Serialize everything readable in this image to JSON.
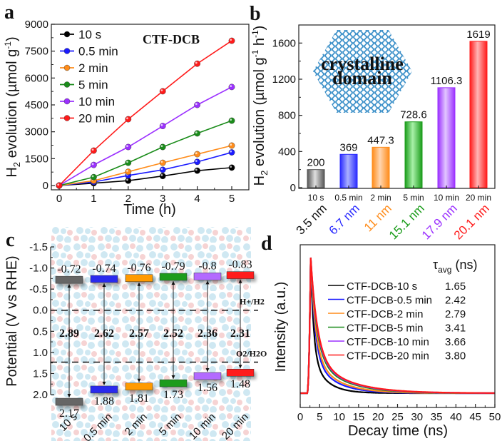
{
  "figure": {
    "panels": [
      "a",
      "b",
      "c",
      "d"
    ]
  },
  "chart_data": [
    {
      "panel": "a",
      "type": "line",
      "title": "CTF-DCB",
      "xlabel": "Time (h)",
      "ylabel": "H2 evolution (µmol g-1)",
      "ylabel_parts": {
        "main": "H",
        "sub": "2",
        "rest": " evolution (µmol g",
        "sup": "-1",
        "close": ")"
      },
      "xlim": [
        0,
        5
      ],
      "ylim": [
        0,
        9000
      ],
      "xticks": [
        "0",
        "1",
        "2",
        "3",
        "4",
        "5"
      ],
      "yticks": [
        "0",
        "1500",
        "3000",
        "4500",
        "6000",
        "7500",
        "9000"
      ],
      "x": [
        0,
        1,
        2,
        3,
        4,
        5
      ],
      "legend_position": "top-left",
      "series": [
        {
          "name": "10 s",
          "color": "#000000",
          "values": [
            0,
            130,
            270,
            530,
            830,
            1000
          ]
        },
        {
          "name": "0.5 min",
          "color": "#1a1aff",
          "values": [
            0,
            200,
            560,
            880,
            1320,
            1850
          ]
        },
        {
          "name": "2 min",
          "color": "#ff8c1a",
          "values": [
            0,
            270,
            770,
            1270,
            1750,
            2230
          ]
        },
        {
          "name": "5 min",
          "color": "#1a8c1a",
          "values": [
            0,
            470,
            1270,
            2150,
            2910,
            3620
          ]
        },
        {
          "name": "10 min",
          "color": "#9b30ff",
          "values": [
            0,
            1150,
            2150,
            3320,
            4500,
            5500
          ]
        },
        {
          "name": "20 min",
          "color": "#ff1a1a",
          "values": [
            0,
            1950,
            3700,
            5260,
            6800,
            8080
          ]
        }
      ]
    },
    {
      "panel": "b",
      "type": "bar",
      "ylabel": "H2 evolution (µmol g-1 h-1)",
      "ylabel_parts": {
        "main": "H",
        "sub": "2",
        "rest": " evolution (µmol g",
        "sup1": "-1",
        "mid": " h",
        "sup2": "-1",
        "close": ")"
      },
      "ylim": [
        0,
        1800
      ],
      "yticks": [
        "0",
        "400",
        "800",
        "1200",
        "1600"
      ],
      "categories": [
        "10 s",
        "0.5 min",
        "2 min",
        "5 min",
        "10 min",
        "20 min"
      ],
      "sublabels": [
        "3.5 nm",
        "6.7 nm",
        "11 nm",
        "15.1 nm",
        "17.9 nm",
        "20.1 nm"
      ],
      "values": [
        200,
        369,
        447.3,
        728.6,
        1106.3,
        1619
      ],
      "value_labels": [
        "200",
        "369",
        "447.3",
        "728.6",
        "1106.3",
        "1619"
      ],
      "colors": [
        "#555555",
        "#2a2aff",
        "#ff8c1a",
        "#1a9c1a",
        "#9b30ff",
        "#ff1a1a"
      ],
      "light_colors": [
        "#e0e0e0",
        "#aab0ff",
        "#ffd6b0",
        "#a8f0a8",
        "#e2c6ff",
        "#ffb6b6"
      ],
      "inset_text": [
        "crystalline",
        "domain"
      ]
    },
    {
      "panel": "c",
      "type": "bar",
      "subtype": "band-diagram",
      "ylabel": "Potential (V vs RHE)",
      "ylim": [
        -1.5,
        2.0
      ],
      "y_inverted": true,
      "yticks": [
        "-1.5",
        "-1.0",
        "-0.5",
        "0.0",
        "0.5",
        "1.0",
        "1.5",
        "2.0"
      ],
      "categories": [
        "10 s",
        "0.5 min",
        "2 min",
        "5 min",
        "10 min",
        "20 min"
      ],
      "cb": [
        -0.72,
        -0.74,
        -0.76,
        -0.79,
        -0.8,
        -0.83
      ],
      "cb_labels": [
        "-0.72",
        "-0.74",
        "-0.76",
        "-0.79",
        "-0.8",
        "-0.83"
      ],
      "vb": [
        2.17,
        1.88,
        1.81,
        1.73,
        1.56,
        1.48
      ],
      "vb_labels": [
        "2.17",
        "1.88",
        "1.81",
        "1.73",
        "1.56",
        "1.48"
      ],
      "band_gaps": [
        "2.89",
        "2.62",
        "2.57",
        "2.52",
        "2.36",
        "2.31"
      ],
      "colors": [
        "#666666",
        "#2a2aee",
        "#ff9a00",
        "#1a9c1a",
        "#b36bff",
        "#ff1a1a"
      ],
      "reference_lines": [
        {
          "label": "H+/H2",
          "value": 0.0
        },
        {
          "label": "O2/H2O",
          "value": 1.23
        }
      ]
    },
    {
      "panel": "d",
      "type": "line",
      "xlabel": "Decay time (ns)",
      "ylabel": "Intensity (a.u.)",
      "xlim": [
        0,
        50
      ],
      "xticks": [
        "0",
        "5",
        "10",
        "15",
        "20",
        "25",
        "30",
        "35",
        "40",
        "45",
        "50"
      ],
      "legend_header": "τavg (ns)",
      "legend_header_parts": {
        "sym": "τ",
        "sub": "avg",
        "unit": " (ns)"
      },
      "legend_position": "top-right",
      "peak_time_ns": 2.7,
      "series": [
        {
          "name": "CTF-DCB-10 s",
          "color": "#000000",
          "tau_avg": "1.65"
        },
        {
          "name": "CTF-DCB-0.5 min",
          "color": "#1a1aff",
          "tau_avg": "2.42"
        },
        {
          "name": "CTF-DCB-2 min",
          "color": "#ff8c1a",
          "tau_avg": "2.79"
        },
        {
          "name": "CTF-DCB-5 min",
          "color": "#1a8c1a",
          "tau_avg": "3.41"
        },
        {
          "name": "CTF-DCB-10 min",
          "color": "#9b30ff",
          "tau_avg": "3.66"
        },
        {
          "name": "CTF-DCB-20 min",
          "color": "#ff1a1a",
          "tau_avg": "3.80"
        }
      ]
    }
  ]
}
